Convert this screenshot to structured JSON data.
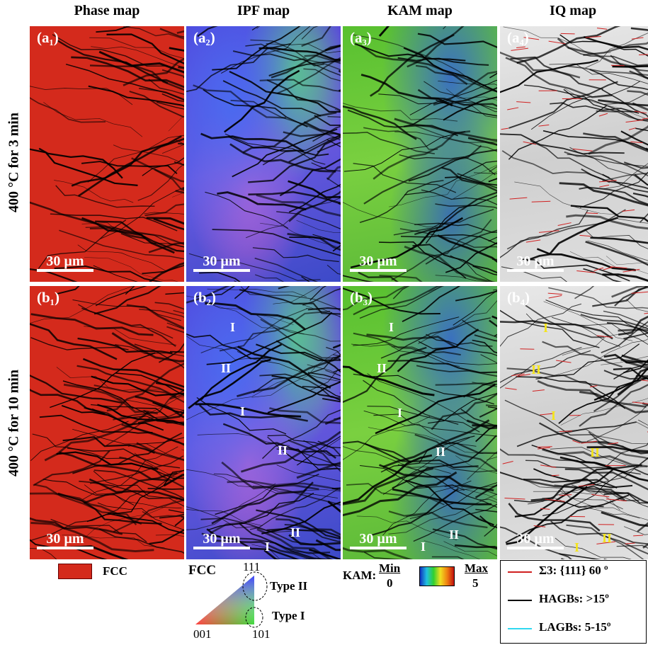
{
  "columns": [
    "Phase map",
    "IPF map",
    "KAM map",
    "IQ map"
  ],
  "rows": [
    {
      "label": "400 °C for 3 min",
      "panels": [
        "(a₁)",
        "(a₂)",
        "(a₃)",
        "(a₄)"
      ]
    },
    {
      "label": "400 °C for 10 min",
      "panels": [
        "(b₁)",
        "(b₂)",
        "(b₃)",
        "(b₄)"
      ]
    }
  ],
  "scale_bar": "30 µm",
  "annotations": {
    "b2": [
      "I",
      "II",
      "I",
      "II",
      "II",
      "I"
    ],
    "b3": [
      "I",
      "II",
      "I",
      "II",
      "II",
      "I"
    ],
    "b4": [
      "I",
      "II",
      "I",
      "II",
      "II",
      "I"
    ]
  },
  "legend": {
    "phase": "FCC",
    "ipf": {
      "title": "FCC",
      "v111": "111",
      "v001": "001",
      "v101": "101",
      "type2": "Type II",
      "type1": "Type I"
    },
    "kam": {
      "label": "KAM:",
      "min": "Min",
      "min_value": "0",
      "max": "Max",
      "max_value": "5"
    },
    "boundaries": [
      "Σ3: {111} 60 º",
      "HAGBs: >15º",
      "LAGBs: 5-15º"
    ]
  }
}
